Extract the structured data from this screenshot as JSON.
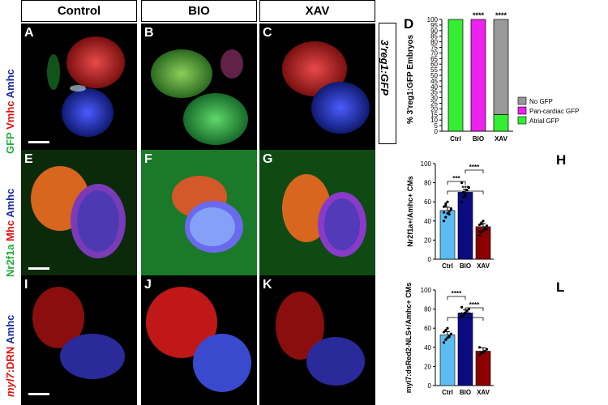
{
  "headers": {
    "control": "Control",
    "bio": "BIO",
    "xav": "XAV"
  },
  "row_labels": {
    "row1": [
      {
        "text": "GFP",
        "color": "#1fae3a"
      },
      {
        "text": " Vmhc",
        "color": "#e01010"
      },
      {
        "text": " Amhc",
        "color": "#1a2aa0"
      }
    ],
    "row2": [
      {
        "text": "Nr2f1a",
        "color": "#1fae3a"
      },
      {
        "text": " Mhc",
        "color": "#e01010"
      },
      {
        "text": " Amhc",
        "color": "#1a2aa0"
      }
    ],
    "row3": [
      {
        "text": "myl7",
        "color": "#e01010",
        "italic": true
      },
      {
        "text": ":DRN",
        "color": "#e01010"
      },
      {
        "text": " Amhc",
        "color": "#1a2aa0"
      }
    ]
  },
  "side_label": "3'reg1:GFP",
  "panels": [
    "A",
    "B",
    "C",
    "E",
    "F",
    "G",
    "I",
    "J",
    "K"
  ],
  "chart_labels": {
    "d": "D",
    "h": "H",
    "l": "L"
  },
  "chart_data": [
    {
      "type": "bar",
      "stacked": true,
      "categories": [
        "Ctrl",
        "BIO",
        "XAV"
      ],
      "series": [
        {
          "name": "Atrial GFP",
          "color": "#33ee33",
          "values": [
            100,
            0,
            15
          ]
        },
        {
          "name": "Pan-cardiac GFP",
          "color": "#ee22ee",
          "values": [
            0,
            100,
            0
          ]
        },
        {
          "name": "No GFP",
          "color": "#999999",
          "values": [
            0,
            0,
            85
          ]
        }
      ],
      "ylabel": "% 3'reg1:GFP Embryos",
      "ylim": [
        0,
        100
      ],
      "yticks": [
        0,
        5,
        10,
        15,
        20,
        25,
        30,
        35,
        40,
        45,
        50,
        55,
        60,
        65,
        70,
        75,
        80,
        85,
        90,
        95,
        100
      ],
      "annotations": [
        "****",
        "****"
      ],
      "legend": "right"
    },
    {
      "type": "bar",
      "categories": [
        "Ctrl",
        "BIO",
        "XAV"
      ],
      "values": [
        51,
        70,
        34
      ],
      "colors": [
        "#5bbcf0",
        "#0b0b80",
        "#8b0000"
      ],
      "points": [
        [
          40,
          44,
          48,
          50,
          52,
          55,
          58,
          60,
          47,
          53,
          49,
          56
        ],
        [
          60,
          65,
          68,
          72,
          75,
          80,
          70,
          66
        ],
        [
          25,
          28,
          30,
          32,
          35,
          36,
          38,
          40,
          33,
          31,
          29,
          37
        ]
      ],
      "ylabel": "Nr2f1a+/Amhc+ CMs",
      "ylim": [
        0,
        100
      ],
      "yticks": [
        0,
        20,
        40,
        60,
        80,
        100
      ],
      "significance": [
        "***",
        "****",
        "***"
      ]
    },
    {
      "type": "bar",
      "categories": [
        "Ctrl",
        "BIO",
        "XAV"
      ],
      "values": [
        53,
        76,
        36
      ],
      "colors": [
        "#5bbcf0",
        "#0b0b80",
        "#8b0000"
      ],
      "points": [
        [
          45,
          48,
          50,
          52,
          54,
          56,
          58,
          60,
          51
        ],
        [
          72,
          74,
          76,
          78,
          80,
          82
        ],
        [
          32,
          34,
          35,
          36,
          38,
          40
        ]
      ],
      "ylabel": "myl7:dsRed2-NLS+/Amhc+ CMs",
      "ylim": [
        0,
        100
      ],
      "yticks": [
        0,
        20,
        40,
        60,
        80,
        100
      ],
      "significance": [
        "****",
        "****",
        "****"
      ]
    }
  ]
}
